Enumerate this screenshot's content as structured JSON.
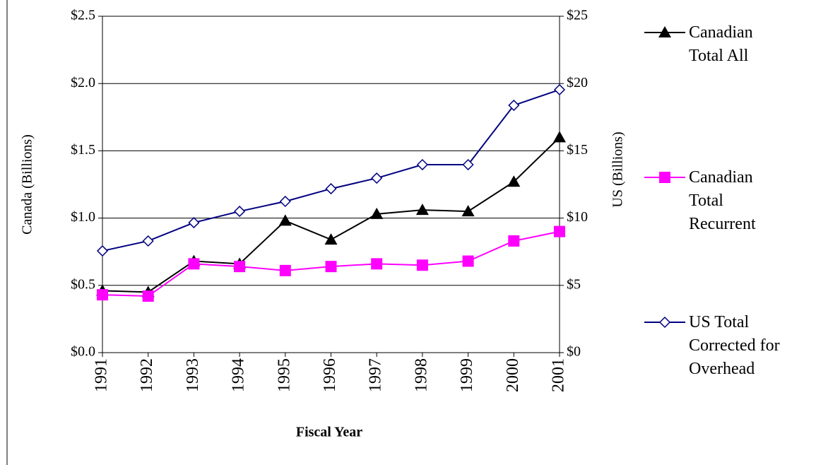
{
  "chart_data": {
    "type": "line",
    "categories": [
      "1991",
      "1992",
      "1993",
      "1994",
      "1995",
      "1996",
      "1997",
      "1998",
      "1999",
      "2000",
      "2001"
    ],
    "x_label": "Fiscal Year",
    "y_label": "Canada   (Billions)",
    "y2_label": "US   (Billions)",
    "ylim": [
      0,
      2.5
    ],
    "yticks": [
      {
        "value": 0,
        "label": "$0.0"
      },
      {
        "value": 0.5,
        "label": "$0.5"
      },
      {
        "value": 1,
        "label": "$1.0"
      },
      {
        "value": 1.5,
        "label": "$1.5"
      },
      {
        "value": 2,
        "label": "$2.0"
      },
      {
        "value": 2.5,
        "label": "$2.5"
      }
    ],
    "y2lim": [
      0,
      25
    ],
    "y2ticks": [
      {
        "value": 0,
        "label": "$0"
      },
      {
        "value": 5,
        "label": "$5"
      },
      {
        "value": 10,
        "label": "$10"
      },
      {
        "value": 15,
        "label": "$15"
      },
      {
        "value": 20,
        "label": "$20"
      },
      {
        "value": 25,
        "label": "$25"
      }
    ],
    "grid": true,
    "legend": "right",
    "series": [
      {
        "name": "Canadian Total All",
        "color": "#000000",
        "marker": "triangle",
        "values": [
          0.46,
          0.45,
          0.68,
          0.66,
          0.98,
          0.84,
          1.03,
          1.06,
          1.05,
          1.27,
          1.6
        ]
      },
      {
        "name": "Canadian Total Recurrent",
        "color": "#ff00ff",
        "marker": "square",
        "values": [
          0.43,
          0.42,
          0.66,
          0.64,
          0.61,
          0.64,
          0.66,
          0.65,
          0.68,
          0.83,
          0.9
        ]
      },
      {
        "name": "US Total Corrected for Overhead",
        "color": "#000080",
        "marker": "diamond",
        "axis": "y2",
        "values": [
          7.56,
          8.3,
          9.66,
          10.5,
          11.24,
          12.18,
          12.97,
          13.97,
          13.97,
          18.38,
          19.54
        ]
      }
    ]
  }
}
